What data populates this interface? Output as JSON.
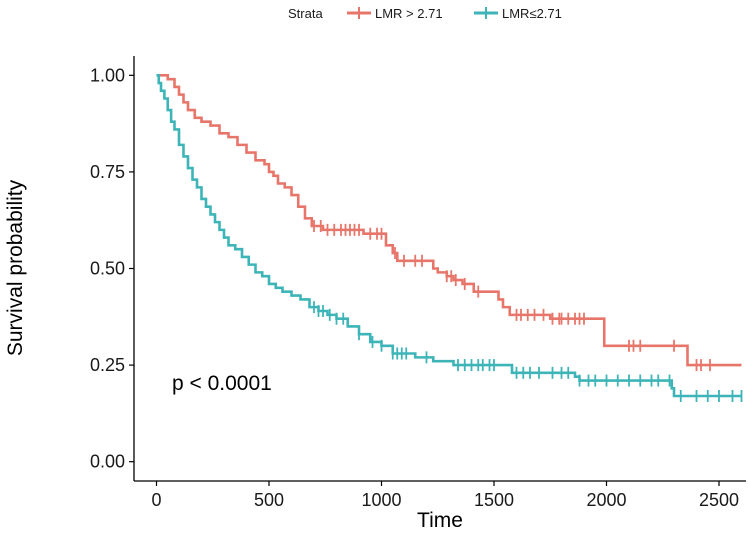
{
  "chart_data": {
    "type": "line",
    "subtype": "kaplan-meier",
    "xlabel": "Time",
    "ylabel": "Survival probability",
    "xlim": [
      -100,
      2620
    ],
    "ylim": [
      -0.05,
      1.05
    ],
    "xticks": [
      0,
      500,
      1000,
      1500,
      2000,
      2500
    ],
    "yticks": [
      0.0,
      0.25,
      0.5,
      0.75,
      1.0
    ],
    "ytick_labels": [
      "0.00",
      "0.25",
      "0.50",
      "0.75",
      "1.00"
    ],
    "legend_title": "Strata",
    "legend_position": "top",
    "annotation": "p < 0.0001",
    "series": [
      {
        "name": "LMR > 2.71",
        "color": "#E8756A",
        "points": [
          [
            0,
            1.0
          ],
          [
            50,
            1.0
          ],
          [
            50,
            0.99
          ],
          [
            80,
            0.99
          ],
          [
            80,
            0.97
          ],
          [
            100,
            0.95
          ],
          [
            120,
            0.93
          ],
          [
            140,
            0.91
          ],
          [
            170,
            0.89
          ],
          [
            200,
            0.88
          ],
          [
            240,
            0.87
          ],
          [
            280,
            0.85
          ],
          [
            320,
            0.84
          ],
          [
            360,
            0.82
          ],
          [
            400,
            0.8
          ],
          [
            440,
            0.78
          ],
          [
            480,
            0.77
          ],
          [
            500,
            0.75
          ],
          [
            520,
            0.74
          ],
          [
            540,
            0.72
          ],
          [
            570,
            0.71
          ],
          [
            600,
            0.69
          ],
          [
            630,
            0.66
          ],
          [
            660,
            0.63
          ],
          [
            690,
            0.61
          ],
          [
            720,
            0.61
          ],
          [
            740,
            0.6
          ],
          [
            760,
            0.6
          ],
          [
            900,
            0.6
          ],
          [
            920,
            0.59
          ],
          [
            1020,
            0.59
          ],
          [
            1020,
            0.56
          ],
          [
            1050,
            0.54
          ],
          [
            1070,
            0.52
          ],
          [
            1200,
            0.52
          ],
          [
            1230,
            0.5
          ],
          [
            1250,
            0.49
          ],
          [
            1290,
            0.48
          ],
          [
            1320,
            0.47
          ],
          [
            1360,
            0.46
          ],
          [
            1410,
            0.44
          ],
          [
            1500,
            0.44
          ],
          [
            1520,
            0.42
          ],
          [
            1540,
            0.4
          ],
          [
            1560,
            0.4
          ],
          [
            1570,
            0.38
          ],
          [
            1700,
            0.38
          ],
          [
            1750,
            0.37
          ],
          [
            1990,
            0.37
          ],
          [
            1990,
            0.3
          ],
          [
            2360,
            0.3
          ],
          [
            2360,
            0.25
          ],
          [
            2600,
            0.25
          ]
        ],
        "censor_times": [
          700,
          730,
          760,
          790,
          820,
          840,
          860,
          880,
          900,
          950,
          980,
          1000,
          1060,
          1100,
          1150,
          1180,
          1290,
          1310,
          1330,
          1370,
          1430,
          1600,
          1620,
          1650,
          1680,
          1720,
          1760,
          1790,
          1800,
          1830,
          1860,
          1880,
          1900,
          2100,
          2120,
          2150,
          2300,
          2400,
          2420,
          2460
        ]
      },
      {
        "name": "LMR≤2.71",
        "color": "#3DB5B8",
        "points": [
          [
            0,
            1.0
          ],
          [
            10,
            0.98
          ],
          [
            20,
            0.96
          ],
          [
            35,
            0.94
          ],
          [
            50,
            0.91
          ],
          [
            65,
            0.88
          ],
          [
            80,
            0.86
          ],
          [
            100,
            0.82
          ],
          [
            120,
            0.79
          ],
          [
            140,
            0.76
          ],
          [
            160,
            0.73
          ],
          [
            180,
            0.71
          ],
          [
            200,
            0.68
          ],
          [
            220,
            0.66
          ],
          [
            240,
            0.64
          ],
          [
            260,
            0.62
          ],
          [
            280,
            0.6
          ],
          [
            300,
            0.58
          ],
          [
            320,
            0.56
          ],
          [
            350,
            0.55
          ],
          [
            380,
            0.53
          ],
          [
            410,
            0.51
          ],
          [
            440,
            0.49
          ],
          [
            470,
            0.48
          ],
          [
            500,
            0.46
          ],
          [
            530,
            0.45
          ],
          [
            560,
            0.44
          ],
          [
            600,
            0.43
          ],
          [
            640,
            0.42
          ],
          [
            680,
            0.4
          ],
          [
            720,
            0.39
          ],
          [
            760,
            0.38
          ],
          [
            800,
            0.37
          ],
          [
            850,
            0.35
          ],
          [
            900,
            0.33
          ],
          [
            950,
            0.31
          ],
          [
            1000,
            0.3
          ],
          [
            1050,
            0.28
          ],
          [
            1100,
            0.28
          ],
          [
            1150,
            0.27
          ],
          [
            1200,
            0.27
          ],
          [
            1230,
            0.26
          ],
          [
            1300,
            0.26
          ],
          [
            1320,
            0.25
          ],
          [
            1550,
            0.25
          ],
          [
            1580,
            0.23
          ],
          [
            1700,
            0.23
          ],
          [
            1860,
            0.22
          ],
          [
            1880,
            0.21
          ],
          [
            2280,
            0.21
          ],
          [
            2290,
            0.19
          ],
          [
            2300,
            0.17
          ],
          [
            2600,
            0.17
          ]
        ],
        "censor_times": [
          700,
          720,
          740,
          770,
          800,
          830,
          900,
          960,
          1000,
          1050,
          1070,
          1090,
          1110,
          1200,
          1340,
          1370,
          1400,
          1430,
          1450,
          1480,
          1500,
          1600,
          1630,
          1660,
          1700,
          1760,
          1800,
          1830,
          1880,
          1920,
          1950,
          2000,
          2050,
          2100,
          2150,
          2200,
          2230,
          2280,
          2330,
          2400,
          2450,
          2500,
          2560,
          2600
        ]
      }
    ]
  }
}
